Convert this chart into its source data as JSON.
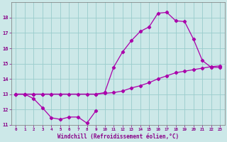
{
  "bg_color": "#cce8e8",
  "grid_color": "#99cccc",
  "line_color": "#aa00aa",
  "xlabel": "Windchill (Refroidissement éolien,°C)",
  "xlabel_color": "#880088",
  "tick_color": "#880088",
  "xlim": [
    -0.5,
    23.5
  ],
  "ylim": [
    11,
    19
  ],
  "xticks": [
    0,
    1,
    2,
    3,
    4,
    5,
    6,
    7,
    8,
    9,
    10,
    11,
    12,
    13,
    14,
    15,
    16,
    17,
    18,
    19,
    20,
    21,
    22,
    23
  ],
  "yticks": [
    11,
    12,
    13,
    14,
    15,
    16,
    17,
    18
  ],
  "line1_x": [
    0,
    1,
    2,
    3,
    4,
    5,
    6,
    7,
    8,
    9
  ],
  "line1_y": [
    13,
    13,
    12.7,
    12.1,
    11.45,
    11.35,
    11.5,
    11.5,
    11.1,
    11.9
  ],
  "line2_x": [
    0,
    1,
    2,
    3,
    4,
    5,
    6,
    7,
    8,
    9,
    10,
    11,
    12,
    13,
    14,
    15,
    16,
    17,
    18,
    19,
    20,
    21,
    22,
    23
  ],
  "line2_y": [
    13,
    13,
    13,
    13,
    13,
    13,
    13,
    13,
    13,
    13,
    13.05,
    13.1,
    13.2,
    13.4,
    13.55,
    13.75,
    14.0,
    14.2,
    14.4,
    14.5,
    14.6,
    14.7,
    14.8,
    14.85
  ],
  "line3_x": [
    0,
    1,
    2,
    3,
    4,
    9,
    10,
    11,
    12,
    13,
    14,
    15,
    16,
    17,
    18,
    19,
    20,
    21,
    22,
    23
  ],
  "line3_y": [
    13,
    13,
    13,
    13,
    13,
    13,
    13.1,
    14.75,
    15.75,
    16.5,
    17.1,
    17.4,
    18.3,
    18.35,
    17.8,
    17.75,
    16.6,
    15.2,
    14.75,
    14.75
  ]
}
